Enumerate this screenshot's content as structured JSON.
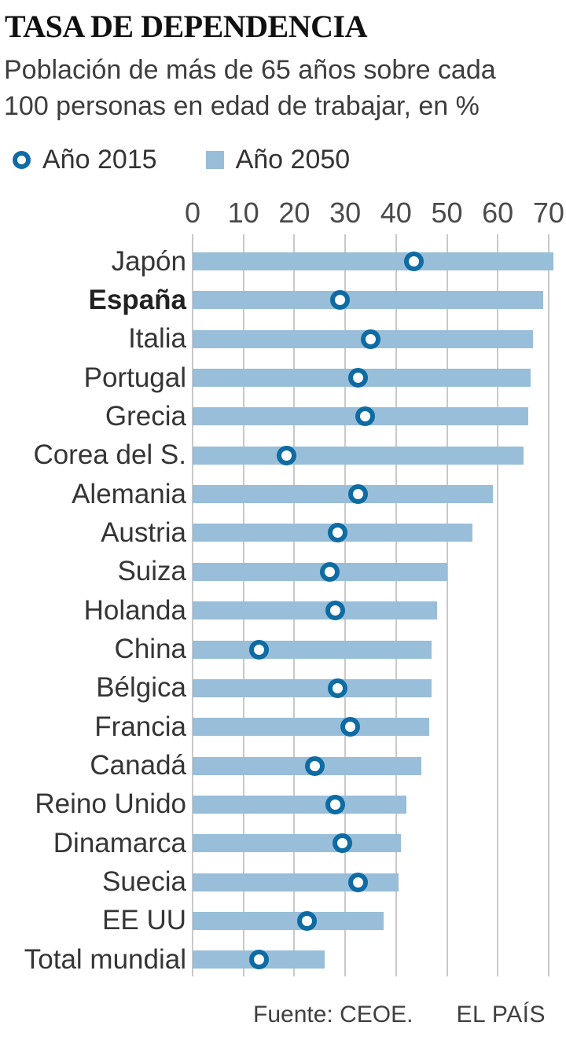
{
  "header": {
    "title": "TASA DE DEPENDENCIA",
    "subtitle_lines": {
      "0": "Población de más de 65 años sobre cada",
      "1": "100 personas en edad de trabajar, en %"
    }
  },
  "legend": [
    {
      "label": "Año 2015",
      "marker": "ring",
      "color": "#0e6ba3"
    },
    {
      "label": "Año 2050",
      "marker": "square",
      "color": "#98bed9"
    }
  ],
  "chart_data": {
    "type": "bar",
    "orientation": "horizontal",
    "title": "TASA DE DEPENDENCIA",
    "subtitle": "Población de más de 65 años sobre cada 100 personas en edad de trabajar, en %",
    "categories": [
      "Japón",
      "España",
      "Italia",
      "Portugal",
      "Grecia",
      "Corea del S.",
      "Alemania",
      "Austria",
      "Suiza",
      "Holanda",
      "China",
      "Bélgica",
      "Francia",
      "Canadá",
      "Reino Unido",
      "Dinamarca",
      "Suecia",
      "EE UU",
      "Total mundial"
    ],
    "series": [
      {
        "name": "Año 2015",
        "style": "ring-dot",
        "values": [
          43.5,
          29,
          35,
          32.5,
          34,
          18.5,
          32.5,
          28.5,
          27,
          28,
          13,
          28.5,
          31,
          24,
          28,
          29.5,
          32.5,
          22.5,
          13
        ]
      },
      {
        "name": "Año 2050",
        "style": "bar",
        "values": [
          71,
          69,
          67,
          66.5,
          66,
          65,
          59,
          55,
          50,
          48,
          47,
          47,
          46.5,
          45,
          42,
          41,
          40.5,
          37.5,
          26
        ]
      }
    ],
    "x_ticks": [
      0,
      10,
      20,
      30,
      40,
      50,
      60,
      70
    ],
    "xlim": [
      0,
      73
    ],
    "grid": "vertical",
    "legend_position": "top",
    "highlighted_category": "España",
    "unit": "%"
  },
  "footer": {
    "source": "Fuente: CEOE.",
    "brand": "EL PAÍS"
  },
  "colors": {
    "bar": "#98bed9",
    "dot_ring": "#0e6ba3",
    "gridline": "#c9c9c9"
  }
}
